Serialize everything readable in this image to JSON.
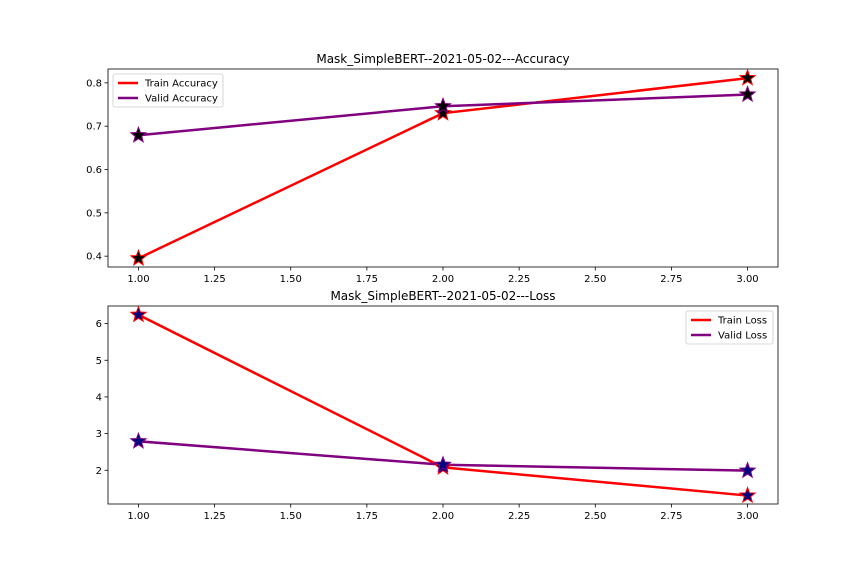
{
  "chart_data": [
    {
      "type": "line",
      "title": "Mask_SimpleBERT--2021-05-02---Accuracy",
      "xlabel": "",
      "ylabel": "",
      "xlim": [
        0.9,
        3.1
      ],
      "ylim": [
        0.375,
        0.832
      ],
      "xticks": [
        1.0,
        1.25,
        1.5,
        1.75,
        2.0,
        2.25,
        2.5,
        2.75,
        3.0
      ],
      "xtick_labels": [
        "1.00",
        "1.25",
        "1.50",
        "1.75",
        "2.00",
        "2.25",
        "2.50",
        "2.75",
        "3.00"
      ],
      "yticks": [
        0.4,
        0.5,
        0.6,
        0.7,
        0.8
      ],
      "ytick_labels": [
        "0.4",
        "0.5",
        "0.6",
        "0.7",
        "0.8"
      ],
      "legend_position": "upper-left",
      "marker": "star",
      "marker_fill": "#000000",
      "series": [
        {
          "name": "Train Accuracy",
          "color": "#ff0000",
          "x": [
            1,
            2,
            3
          ],
          "y": [
            0.395,
            0.73,
            0.811
          ]
        },
        {
          "name": "Valid Accuracy",
          "color": "#800080",
          "x": [
            1,
            2,
            3
          ],
          "y": [
            0.679,
            0.746,
            0.773
          ]
        }
      ]
    },
    {
      "type": "line",
      "title": "Mask_SimpleBERT--2021-05-02---Loss",
      "xlabel": "",
      "ylabel": "",
      "xlim": [
        0.9,
        3.1
      ],
      "ylim": [
        1.08,
        6.48
      ],
      "xticks": [
        1.0,
        1.25,
        1.5,
        1.75,
        2.0,
        2.25,
        2.5,
        2.75,
        3.0
      ],
      "xtick_labels": [
        "1.00",
        "1.25",
        "1.50",
        "1.75",
        "2.00",
        "2.25",
        "2.50",
        "2.75",
        "3.00"
      ],
      "yticks": [
        2,
        3,
        4,
        5,
        6
      ],
      "ytick_labels": [
        "2",
        "3",
        "4",
        "5",
        "6"
      ],
      "legend_position": "upper-right",
      "marker": "star",
      "marker_fill": "#000080",
      "series": [
        {
          "name": "Train Loss",
          "color": "#ff0000",
          "x": [
            1,
            2,
            3
          ],
          "y": [
            6.24,
            2.08,
            1.31
          ]
        },
        {
          "name": "Valid Loss",
          "color": "#800080",
          "x": [
            1,
            2,
            3
          ],
          "y": [
            2.79,
            2.15,
            1.99
          ]
        }
      ]
    }
  ]
}
